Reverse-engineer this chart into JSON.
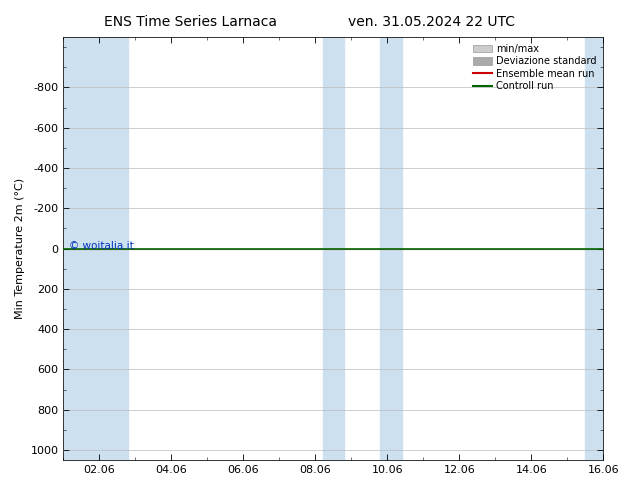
{
  "title_left": "ENS Time Series Larnaca",
  "title_right": "ven. 31.05.2024 22 UTC",
  "ylabel": "Min Temperature 2m (°C)",
  "ylim_top": -1050,
  "ylim_bottom": 1050,
  "yticks": [
    -800,
    -600,
    -400,
    -200,
    0,
    200,
    400,
    600,
    800,
    1000
  ],
  "xlim": [
    0.0,
    15.0
  ],
  "xtick_labels": [
    "02.06",
    "04.06",
    "06.06",
    "08.06",
    "10.06",
    "12.06",
    "14.06",
    "16.06"
  ],
  "xtick_positions": [
    1.0,
    3.0,
    5.0,
    7.0,
    9.0,
    11.0,
    13.0,
    15.0
  ],
  "shaded_bands": [
    [
      0.0,
      1.8
    ],
    [
      7.2,
      7.8
    ],
    [
      8.8,
      9.4
    ],
    [
      14.5,
      15.0
    ]
  ],
  "band_color": "#cce0f0",
  "control_run_y": 0,
  "line_color_control": "#006600",
  "line_color_ensemble": "#cc0000",
  "legend_items": [
    {
      "label": "min/max",
      "color": "#cccccc",
      "type": "band"
    },
    {
      "label": "Deviazione standard",
      "color": "#aaaaaa",
      "type": "band"
    },
    {
      "label": "Ensemble mean run",
      "color": "#cc0000",
      "lw": 1.5,
      "type": "line"
    },
    {
      "label": "Controll run",
      "color": "#006600",
      "lw": 1.5,
      "type": "line"
    }
  ],
  "watermark": "© woitalia.it",
  "watermark_color": "#0033bb",
  "bg_color": "#ffffff",
  "plot_bg_color": "#ffffff",
  "grid_color": "#bbbbbb",
  "title_fontsize": 10,
  "label_fontsize": 8,
  "tick_fontsize": 8
}
